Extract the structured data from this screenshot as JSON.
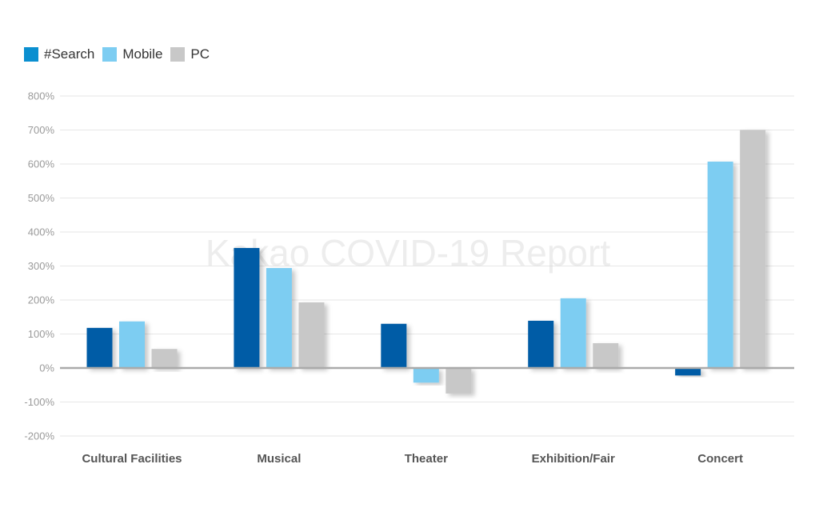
{
  "chart_data": {
    "type": "bar",
    "watermark": "Kakao COVID-19 Report",
    "categories": [
      "Cultural Facilities",
      "Musical",
      "Theater",
      "Exhibition/Fair",
      "Concert"
    ],
    "series": [
      {
        "name": "#Search",
        "color": "#005BA6",
        "legend_color": "#0A8FD0",
        "values": [
          118,
          353,
          130,
          139,
          -22
        ]
      },
      {
        "name": "Mobile",
        "color": "#7DCDF2",
        "legend_color": "#7DCDF2",
        "values": [
          137,
          294,
          -43,
          205,
          607
        ]
      },
      {
        "name": "PC",
        "color": "#C8C8C8",
        "legend_color": "#C8C8C8",
        "values": [
          56,
          193,
          -75,
          73,
          700
        ]
      }
    ],
    "ylim": [
      -200,
      800
    ],
    "yticks": [
      800,
      700,
      600,
      500,
      400,
      300,
      200,
      100,
      0,
      -100,
      -200
    ],
    "ytick_labels": [
      "800%",
      "700%",
      "600%",
      "500%",
      "400%",
      "300%",
      "200%",
      "100%",
      "0%",
      "-100%",
      "-200%"
    ],
    "grid": true,
    "legend_position": "top-left",
    "title": "",
    "xlabel": "",
    "ylabel": ""
  }
}
